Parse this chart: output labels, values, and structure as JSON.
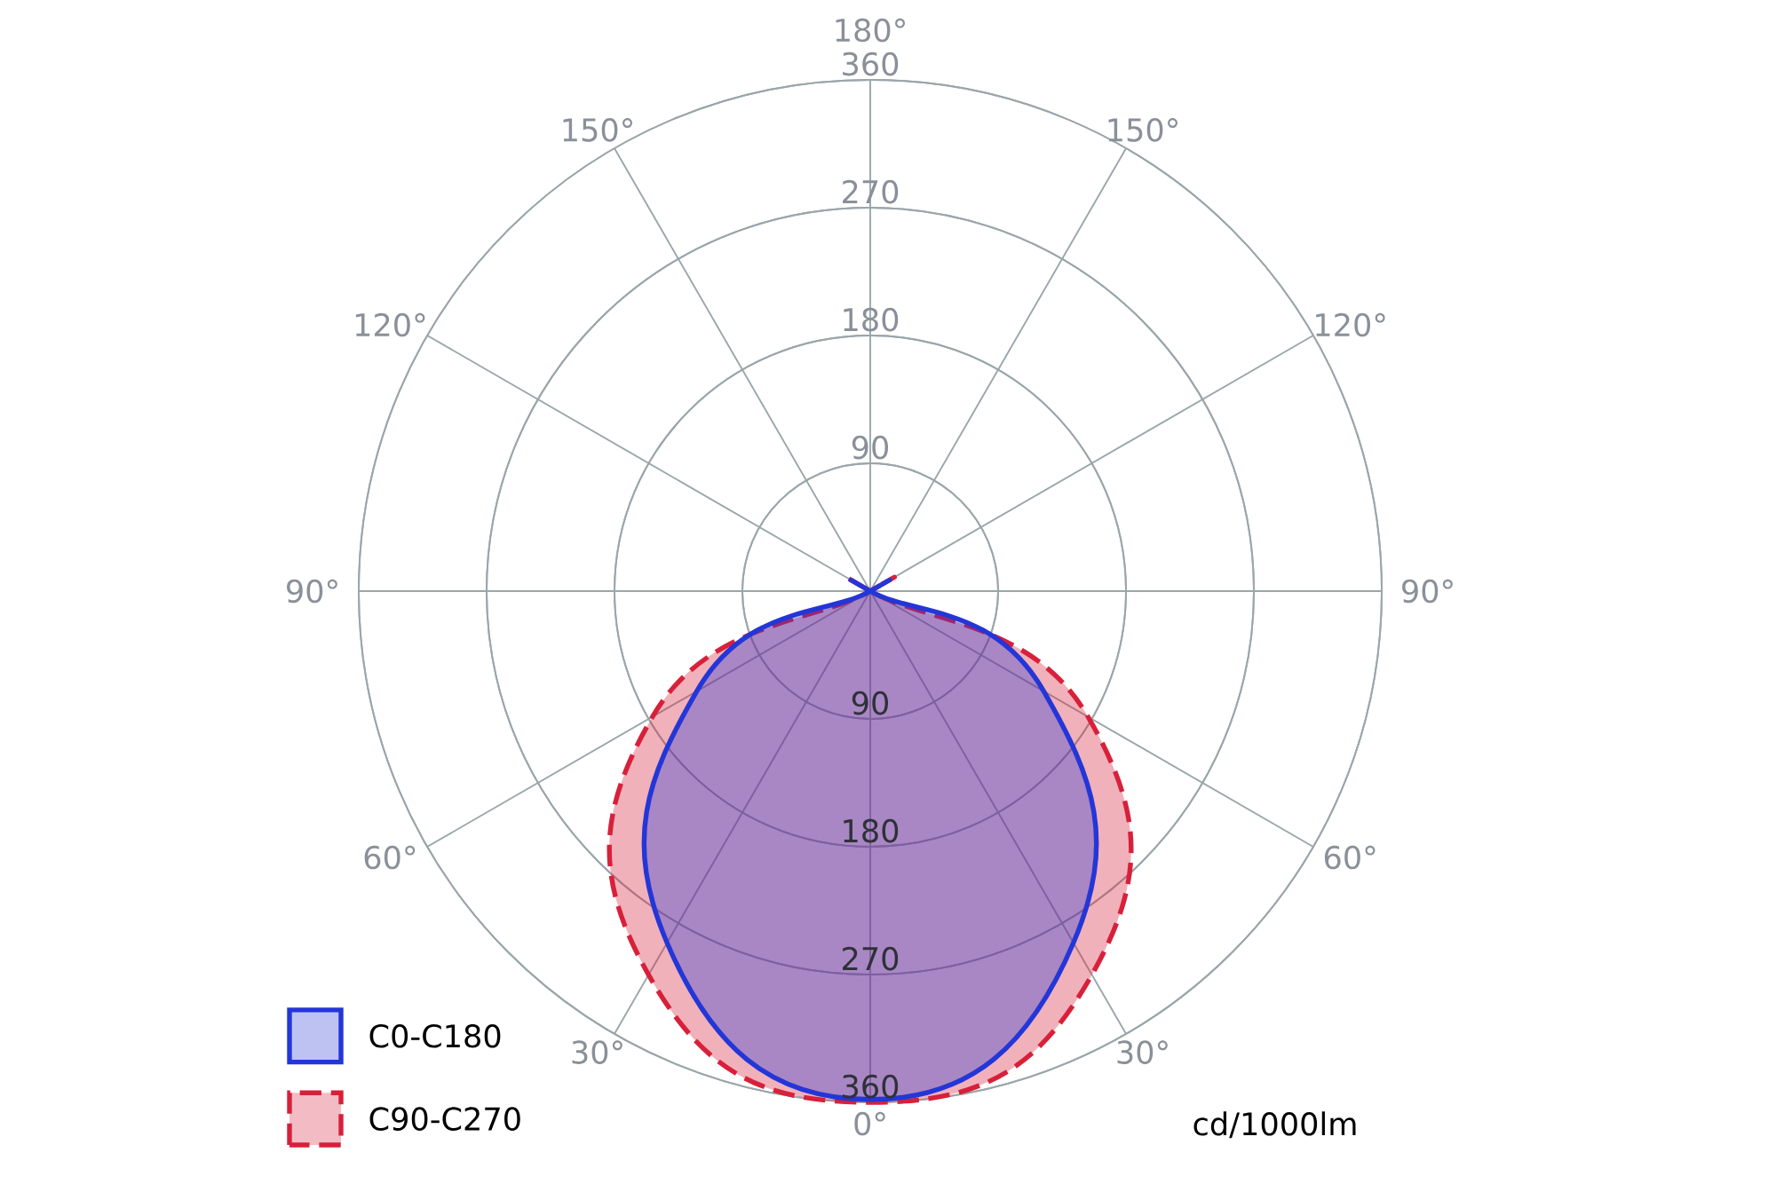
{
  "chart_data": {
    "type": "radar",
    "categories": [
      "180°",
      "150°",
      "120°",
      "90°",
      "60°",
      "30°",
      "0°",
      "30°",
      "60°",
      "90°",
      "120°",
      "150°"
    ],
    "series": [
      {
        "name": "C90-C270",
        "color": "#d8203a",
        "line_style": "dashed",
        "values": [
          0,
          0,
          0,
          0,
          177,
          312,
          360,
          312,
          177,
          0,
          0,
          0
        ]
      },
      {
        "name": "C0-C180",
        "color": "#2336d8",
        "line_style": "solid",
        "values": [
          0,
          0,
          0,
          0,
          141,
          286,
          358,
          286,
          141,
          0,
          0,
          0
        ]
      }
    ],
    "ylim": [
      0,
      360
    ],
    "yticks": [
      90,
      180,
      270,
      360,
      90,
      180,
      270,
      360
    ],
    "grid": true,
    "legend": "bottom left",
    "annotations": [
      "cd/1000lm"
    ]
  }
}
